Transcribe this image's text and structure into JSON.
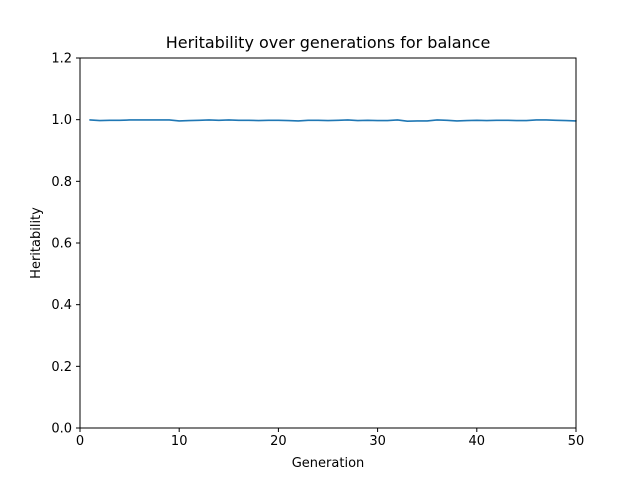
{
  "chart_data": {
    "type": "line",
    "title": "Heritability over generations for balance",
    "xlabel": "Generation",
    "ylabel": "Heritability",
    "xlim": [
      0,
      50
    ],
    "ylim": [
      0,
      1.2
    ],
    "xticks": [
      0,
      10,
      20,
      30,
      40,
      50
    ],
    "yticks": [
      0.0,
      0.2,
      0.4,
      0.6,
      0.8,
      1.0,
      1.2
    ],
    "xtick_labels": [
      "0",
      "10",
      "20",
      "30",
      "40",
      "50"
    ],
    "ytick_labels": [
      "0.0",
      "0.2",
      "0.4",
      "0.6",
      "0.8",
      "1.0",
      "1.2"
    ],
    "grid": false,
    "series": [
      {
        "color": "#1f77b4",
        "x": [
          1,
          2,
          3,
          4,
          5,
          6,
          7,
          8,
          9,
          10,
          11,
          12,
          13,
          14,
          15,
          16,
          17,
          18,
          19,
          20,
          21,
          22,
          23,
          24,
          25,
          26,
          27,
          28,
          29,
          30,
          31,
          32,
          33,
          34,
          35,
          36,
          37,
          38,
          39,
          40,
          41,
          42,
          43,
          44,
          45,
          46,
          47,
          48,
          49,
          50
        ],
        "y": [
          0.999,
          0.997,
          0.998,
          0.998,
          0.999,
          0.999,
          0.999,
          0.999,
          0.999,
          0.996,
          0.997,
          0.998,
          0.999,
          0.998,
          0.999,
          0.998,
          0.998,
          0.997,
          0.998,
          0.998,
          0.997,
          0.996,
          0.998,
          0.998,
          0.997,
          0.998,
          0.999,
          0.997,
          0.998,
          0.997,
          0.997,
          0.999,
          0.995,
          0.996,
          0.996,
          0.999,
          0.998,
          0.996,
          0.997,
          0.998,
          0.997,
          0.998,
          0.998,
          0.997,
          0.997,
          0.999,
          0.999,
          0.998,
          0.997,
          0.996
        ]
      }
    ]
  }
}
